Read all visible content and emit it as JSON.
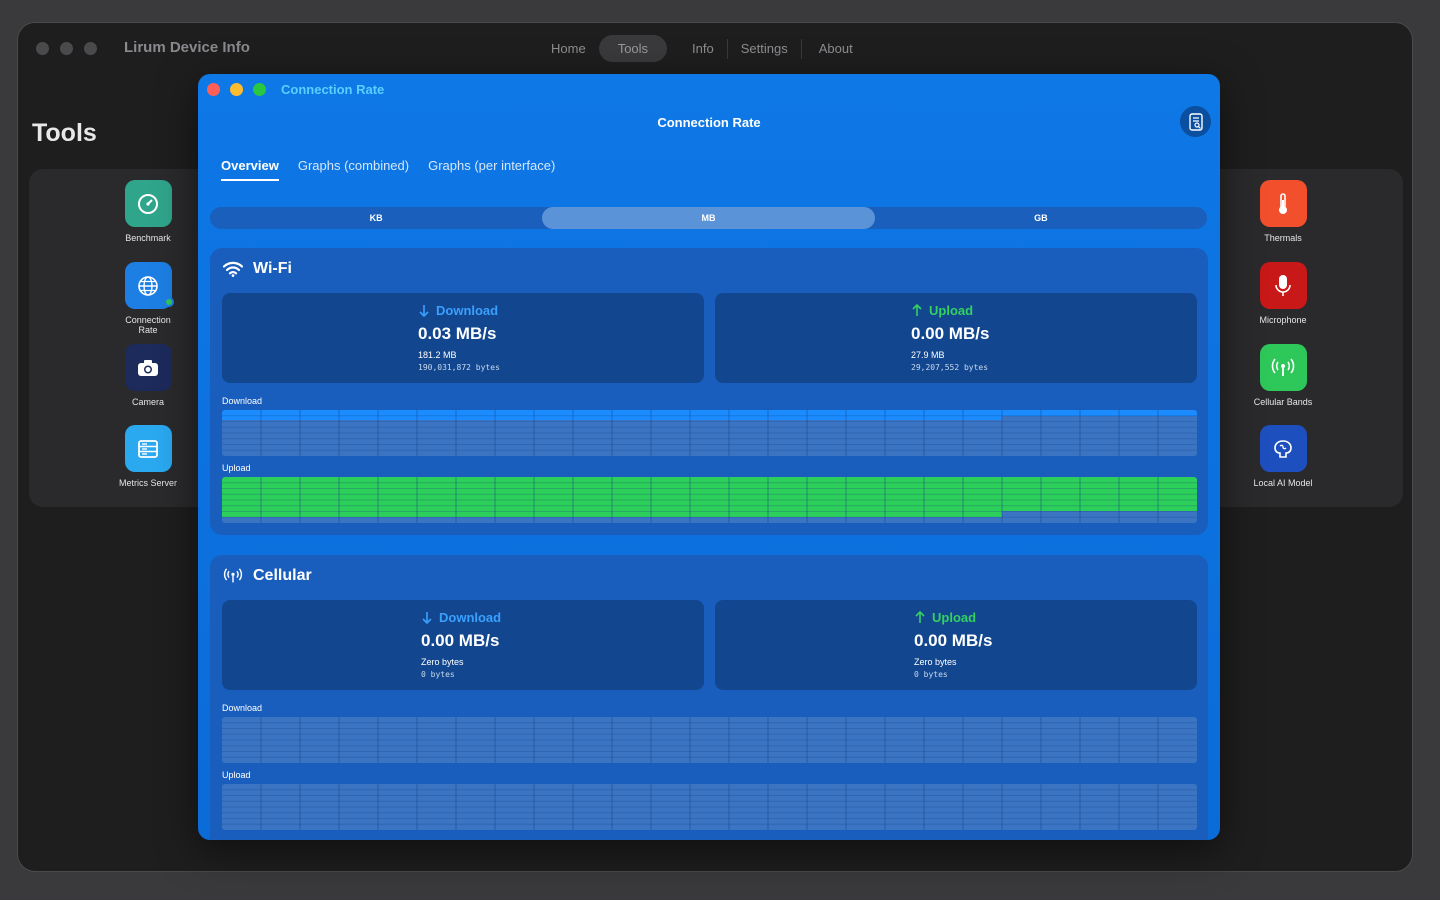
{
  "app": {
    "title": "Lirum Device Info",
    "nav": [
      {
        "label": "Home",
        "active": false
      },
      {
        "label": "Tools",
        "active": true
      },
      {
        "label": "Info",
        "active": false
      },
      {
        "label": "Settings",
        "active": false
      },
      {
        "label": "About",
        "active": false
      }
    ]
  },
  "tools_page": {
    "title": "Tools",
    "left_tools": [
      {
        "label": "Benchmark",
        "icon": "speedometer-icon",
        "color": "#2fa58b"
      },
      {
        "label": "Connection\nRate",
        "icon": "globe-icon",
        "color": "#1d7fe4"
      },
      {
        "label": "Camera",
        "icon": "camera-icon",
        "color": "#1c2a5c"
      },
      {
        "label": "Metrics Server",
        "icon": "server-icon",
        "color": "#2aa8f0"
      }
    ],
    "right_tools": [
      {
        "label": "Thermals",
        "icon": "thermometer-icon",
        "color": "#f2502c"
      },
      {
        "label": "Microphone",
        "icon": "microphone-icon",
        "color": "#c81818"
      },
      {
        "label": "Cellular Bands",
        "icon": "antenna-icon",
        "color": "#2ec75a"
      },
      {
        "label": "Local AI Model",
        "icon": "brain-icon",
        "color": "#1e4fbf"
      }
    ]
  },
  "window": {
    "title": "Connection Rate",
    "page_title": "Connection Rate",
    "tabs": [
      {
        "label": "Overview",
        "active": true
      },
      {
        "label": "Graphs (combined)",
        "active": false
      },
      {
        "label": "Graphs (per interface)",
        "active": false
      }
    ],
    "units": [
      {
        "label": "KB",
        "active": false
      },
      {
        "label": "MB",
        "active": true
      },
      {
        "label": "GB",
        "active": false
      }
    ]
  },
  "wifi": {
    "title": "Wi-Fi",
    "download": {
      "label": "Download",
      "rate": "0.03 MB/s",
      "size": "181.2 MB",
      "bytes": "190,031,872 bytes"
    },
    "upload": {
      "label": "Upload",
      "rate": "0.00 MB/s",
      "size": "27.9 MB",
      "bytes": "29,207,552 bytes"
    },
    "download_graph_label": "Download",
    "upload_graph_label": "Upload"
  },
  "cellular": {
    "title": "Cellular",
    "download": {
      "label": "Download",
      "rate": "0.00 MB/s",
      "size": "Zero bytes",
      "bytes": "0 bytes"
    },
    "upload": {
      "label": "Upload",
      "rate": "0.00 MB/s",
      "size": "Zero bytes",
      "bytes": "0 bytes"
    },
    "download_graph_label": "Download",
    "upload_graph_label": "Upload"
  },
  "colors": {
    "download": "#1a8cff",
    "upload": "#2ccf5a"
  }
}
